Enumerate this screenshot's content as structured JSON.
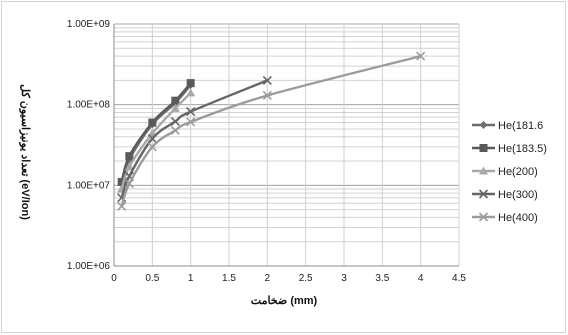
{
  "chart_data": {
    "type": "line",
    "title": "",
    "xlabel": "ضخامت (mm)",
    "ylabel": "تعداد یونیزاسیون کل (eV/Ion)",
    "xlim": [
      0,
      4.5
    ],
    "ylim": [
      1000000,
      1000000000
    ],
    "yscale": "log",
    "grid": true,
    "legend_position": "right",
    "x_ticks": [
      "0",
      "0.5",
      "1",
      "1.5",
      "2",
      "2.5",
      "3",
      "3.5",
      "4",
      "4.5"
    ],
    "y_ticks": [
      "1.00E+06",
      "1.00E+07",
      "1.00E+08",
      "1.00E+09"
    ],
    "series": [
      {
        "name": "He(181.6",
        "marker": "diamond",
        "color": "#6e6e6e",
        "x": [
          0.1,
          0.2,
          0.5,
          0.8,
          1.0
        ],
        "y": [
          10500000,
          21000000,
          57000000,
          105000000,
          175000000
        ]
      },
      {
        "name": "He(183.5)",
        "marker": "square",
        "color": "#5a5a5a",
        "x": [
          0.1,
          0.2,
          0.5,
          0.8,
          1.0
        ],
        "y": [
          11000000,
          23000000,
          60000000,
          112000000,
          185000000
        ]
      },
      {
        "name": "He(200)",
        "marker": "triangle",
        "color": "#a8a8a8",
        "x": [
          0.1,
          0.2,
          0.5,
          0.8,
          1.0
        ],
        "y": [
          9000000,
          17000000,
          44000000,
          90000000,
          140000000
        ]
      },
      {
        "name": "He(300)",
        "marker": "x",
        "color": "#666666",
        "x": [
          0.1,
          0.2,
          0.5,
          0.8,
          1.0,
          2.0
        ],
        "y": [
          7000000,
          13000000,
          38000000,
          62000000,
          82000000,
          200000000
        ]
      },
      {
        "name": "He(400)",
        "marker": "x",
        "color": "#9c9c9c",
        "x": [
          0.1,
          0.2,
          0.5,
          0.8,
          1.0,
          2.0,
          4.0
        ],
        "y": [
          5500000,
          10500000,
          30000000,
          48000000,
          61000000,
          130000000,
          400000000
        ]
      }
    ]
  }
}
